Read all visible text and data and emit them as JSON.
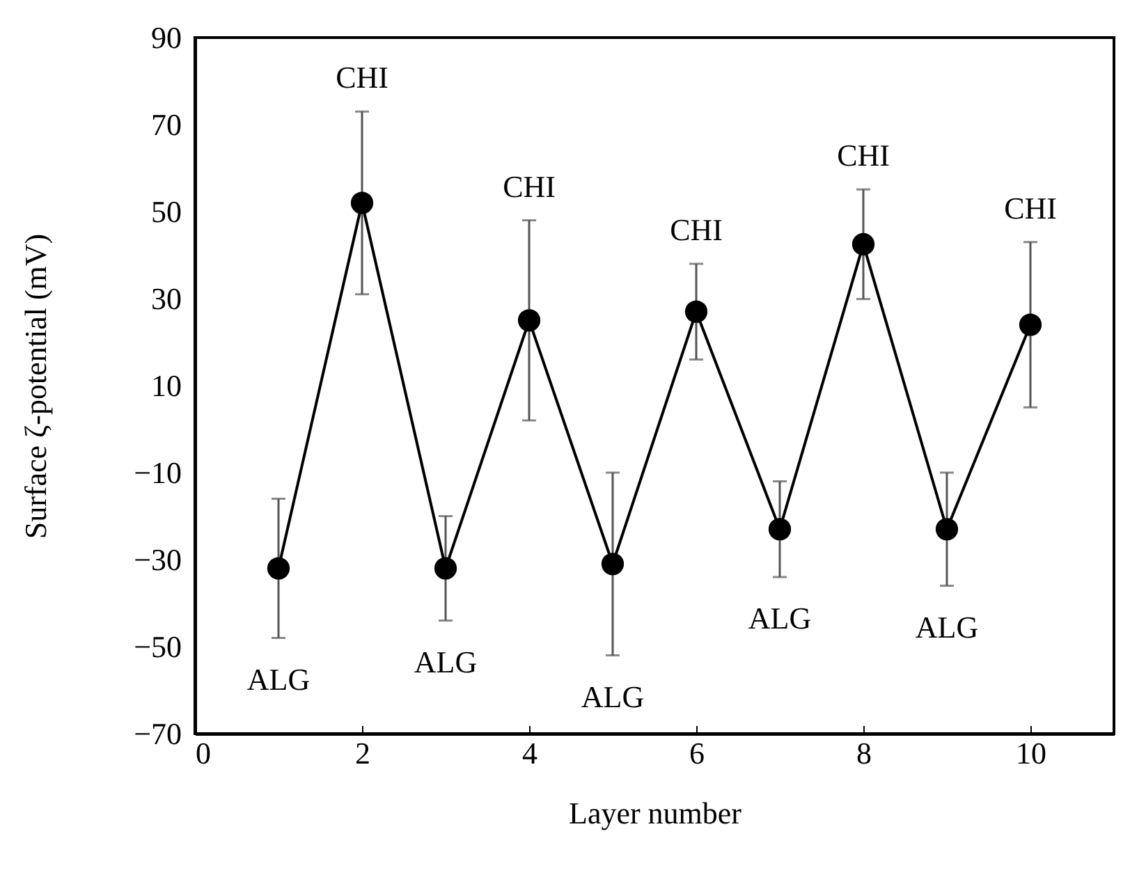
{
  "chart_data": {
    "type": "line",
    "xlabel": "Layer number",
    "ylabel": "Surface ζ-potential (mV)",
    "x": [
      1,
      2,
      3,
      4,
      5,
      6,
      7,
      8,
      9,
      10
    ],
    "series": [
      {
        "color": "#000000",
        "values": [
          -32,
          52,
          -32,
          25,
          -31,
          27,
          -23,
          42.5,
          -23,
          24
        ],
        "errors": [
          16,
          21,
          12,
          23,
          21,
          11,
          11,
          12.6,
          13,
          19
        ]
      }
    ],
    "xlim": [
      0,
      11
    ],
    "xticks": [
      {
        "value": 0,
        "label": "0"
      },
      {
        "value": 2,
        "label": "2"
      },
      {
        "value": 4,
        "label": "4"
      },
      {
        "value": 6,
        "label": "6"
      },
      {
        "value": 8,
        "label": "8"
      },
      {
        "value": 10,
        "label": "10"
      }
    ],
    "ylim": [
      -70,
      90
    ],
    "yticks": [
      -70,
      -50,
      -30,
      -10,
      10,
      30,
      50,
      70,
      90
    ],
    "grid": false,
    "marker": "circle",
    "line_style": "solid",
    "annotations": [
      "ALG",
      "CHI",
      "ALG",
      "CHI",
      "ALG",
      "CHI",
      "ALG",
      "CHI",
      "ALG",
      "CHI"
    ]
  }
}
